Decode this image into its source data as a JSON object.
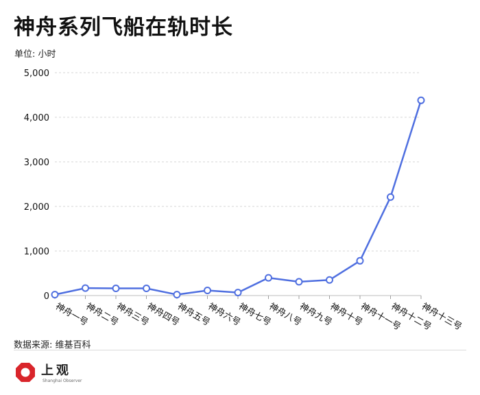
{
  "header": {
    "title": "神舟系列飞船在轨时长",
    "unit": "单位: 小时"
  },
  "footer": {
    "source": "数据来源: 维基百科",
    "logo_text": "上观",
    "logo_subtext": "Shanghai Observer"
  },
  "colors": {
    "line": "#4f6fe0",
    "marker_fill": "#ffffff",
    "grid": "#d6d6d6",
    "logo_red": "#d9252b"
  },
  "chart_data": {
    "type": "line",
    "title": "神舟系列飞船在轨时长",
    "ylabel": "单位: 小时",
    "xlabel": "",
    "ylim": [
      0,
      5000
    ],
    "yticks": [
      0,
      1000,
      2000,
      3000,
      4000,
      5000
    ],
    "ytick_labels": [
      "0",
      "1,000",
      "2,000",
      "3,000",
      "4,000",
      "5,000"
    ],
    "grid": true,
    "categories": [
      "神舟一号",
      "神舟二号",
      "神舟三号",
      "神舟四号",
      "神舟五号",
      "神舟六号",
      "神舟七号",
      "神舟八号",
      "神舟九号",
      "神舟十号",
      "神舟十一号",
      "神舟十二号",
      "神舟十三号"
    ],
    "values": [
      21,
      168,
      162,
      162,
      21,
      115,
      68,
      398,
      309,
      350,
      780,
      2210,
      4380
    ]
  }
}
